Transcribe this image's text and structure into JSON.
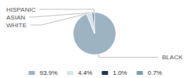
{
  "chart_data": {
    "type": "pie",
    "categories": [
      "BLACK",
      "WHITE",
      "ASIAN",
      "HISPANIC"
    ],
    "values": [
      93.9,
      4.4,
      1.0,
      0.7
    ],
    "value_labels": [
      "93.9%",
      "4.4%",
      "1.0%",
      "0.7%"
    ],
    "colors": [
      "#9eb3c2",
      "#d6e4ec",
      "#22355a",
      "#7a9fb5"
    ],
    "legend": "bottom"
  }
}
